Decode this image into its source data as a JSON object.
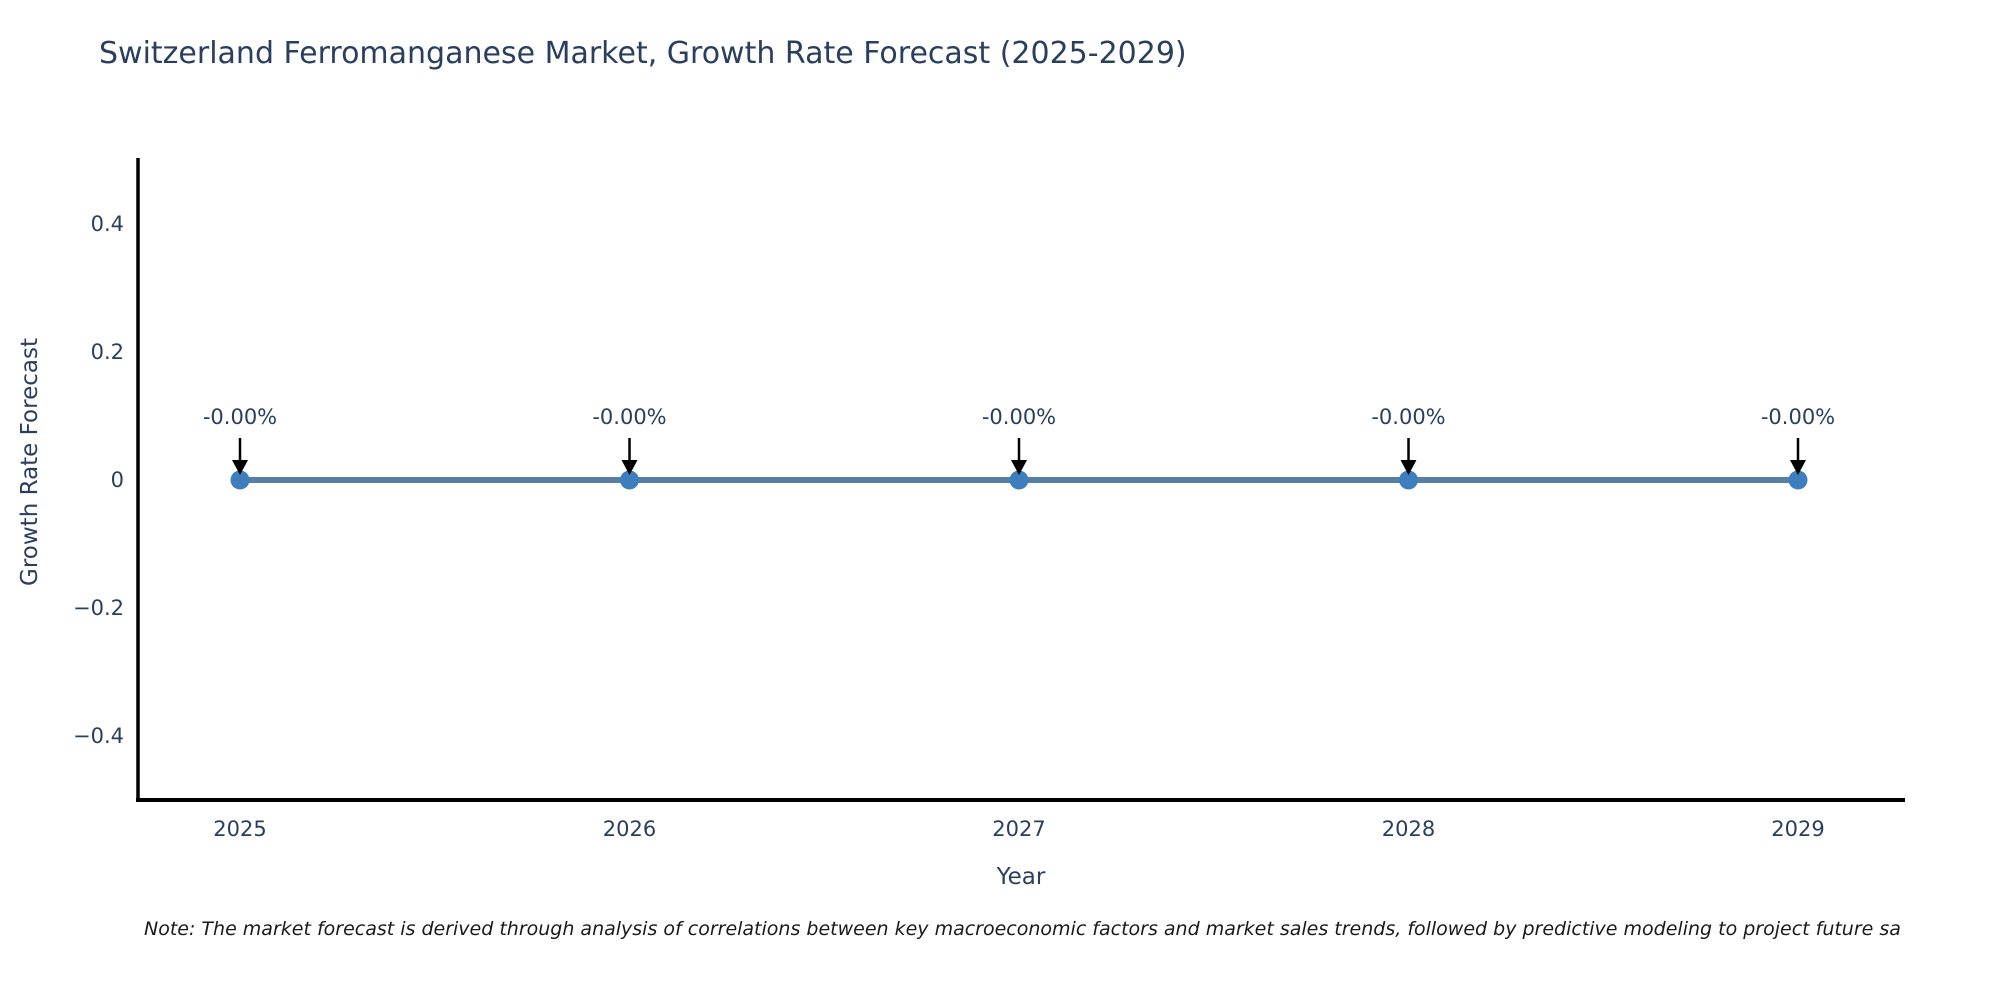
{
  "title": "Switzerland Ferromanganese Market, Growth Rate Forecast (2025-2029)",
  "note": "Note: The market forecast is derived through analysis of correlations between key macroeconomic factors and market sales trends, followed by predictive modeling to project future sa",
  "chart_data": {
    "type": "line",
    "title": "Switzerland Ferromanganese Market, Growth Rate Forecast (2025-2029)",
    "xlabel": "Year",
    "ylabel": "Growth Rate Forecast",
    "categories": [
      "2025",
      "2026",
      "2027",
      "2028",
      "2029"
    ],
    "values": [
      0,
      0,
      0,
      0,
      0
    ],
    "point_labels": [
      "-0.00%",
      "-0.00%",
      "-0.00%",
      "-0.00%",
      "-0.00%"
    ],
    "ylim": [
      -0.5,
      0.5
    ],
    "yticks": [
      0.4,
      0.2,
      0,
      -0.2,
      -0.4
    ],
    "ytick_labels": [
      "0.4",
      "0.2",
      "0",
      "−0.2",
      "−0.4"
    ],
    "grid": false,
    "legend_position": "none",
    "colors": {
      "line": "#567fa6",
      "marker": "#3d7ebf",
      "axis": "#000000",
      "text": "#2a3f5f",
      "annotation_arrow": "#000000"
    }
  }
}
